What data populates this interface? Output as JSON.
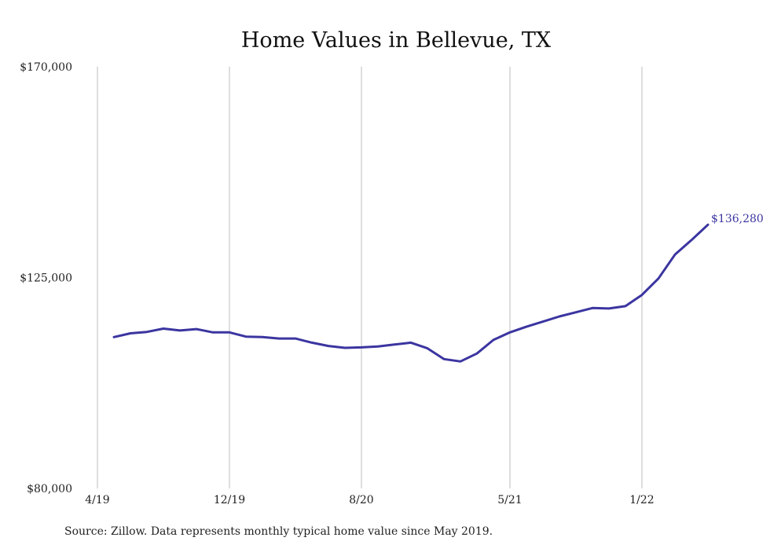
{
  "chart_data": {
    "type": "line",
    "title": "Home Values in Bellevue, TX",
    "source_note": "Source: Zillow. Data represents monthly typical home value since May 2019.",
    "xlabel": "",
    "ylabel": "",
    "ylim": [
      80000,
      170000
    ],
    "y_ticks": [
      80000,
      125000,
      170000
    ],
    "y_tick_labels": [
      "$80,000",
      "$125,000",
      "$170,000"
    ],
    "x_ticks": [
      "2019-04",
      "2019-12",
      "2020-08",
      "2021-05",
      "2022-01"
    ],
    "x_tick_labels": [
      "4/19",
      "12/19",
      "8/20",
      "5/21",
      "1/22"
    ],
    "xlim": [
      "2019-04",
      "2022-06"
    ],
    "grid": "vertical",
    "line_color": "#3b35a0",
    "end_label": "$136,280",
    "series": [
      {
        "x": [
          "2019-05",
          "2019-06",
          "2019-07",
          "2019-08",
          "2019-09",
          "2019-10",
          "2019-11",
          "2019-12",
          "2020-01",
          "2020-02",
          "2020-03",
          "2020-04",
          "2020-05",
          "2020-06",
          "2020-07",
          "2020-08",
          "2020-09",
          "2020-10",
          "2020-11",
          "2020-12",
          "2021-01",
          "2021-02",
          "2021-03",
          "2021-04",
          "2021-05",
          "2021-06",
          "2021-07",
          "2021-08",
          "2021-09",
          "2021-10",
          "2021-11",
          "2021-12",
          "2022-01",
          "2022-02",
          "2022-03",
          "2022-04",
          "2022-05"
        ],
        "values": [
          112300,
          113100,
          113400,
          114100,
          113700,
          114000,
          113300,
          113300,
          112400,
          112300,
          112000,
          112000,
          111100,
          110400,
          110000,
          110100,
          110300,
          110700,
          111100,
          109900,
          107600,
          107100,
          108800,
          111700,
          113300,
          114500,
          115600,
          116700,
          117600,
          118500,
          118400,
          118900,
          121300,
          124800,
          129900,
          133000,
          136280
        ]
      }
    ]
  }
}
